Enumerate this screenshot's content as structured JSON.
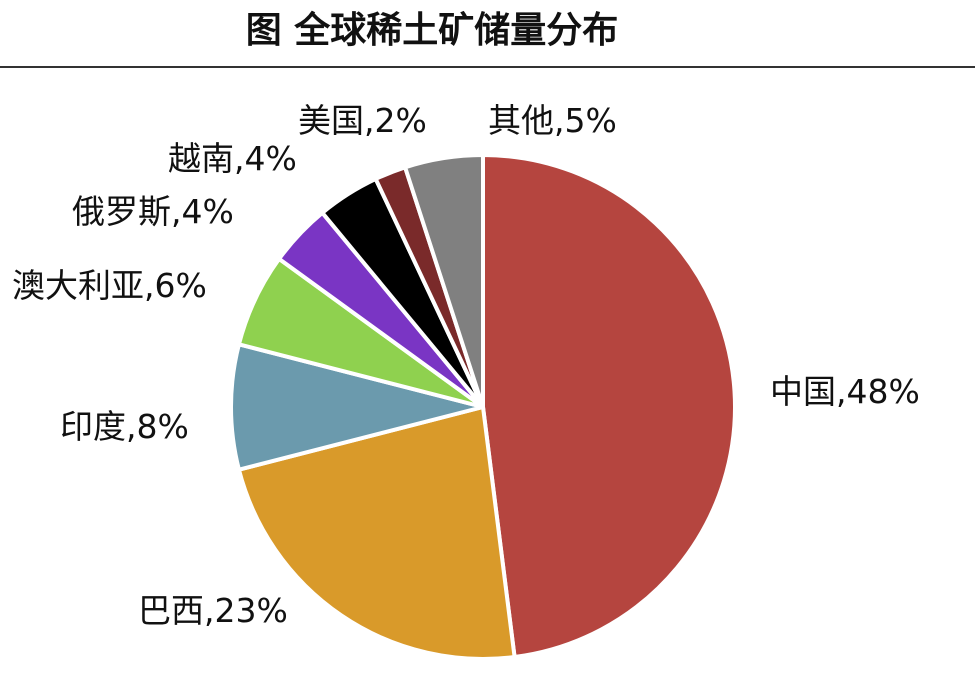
{
  "chart_data": {
    "type": "pie",
    "title": "图  全球稀土矿储量分布",
    "categories": [
      "中国",
      "巴西",
      "印度",
      "澳大利亚",
      "俄罗斯",
      "越南",
      "美国",
      "其他"
    ],
    "values": [
      48,
      23,
      8,
      6,
      4,
      4,
      2,
      5
    ],
    "value_labels": [
      ",48%",
      ",23%",
      ",8%",
      ",6%",
      ",4%",
      ",4%",
      ",2%",
      ",5%"
    ],
    "colors": [
      "#b5453f",
      "#d99a2a",
      "#6b9aad",
      "#8fd14f",
      "#7a35c4",
      "#000000",
      "#7a2a2a",
      "#808080"
    ]
  }
}
